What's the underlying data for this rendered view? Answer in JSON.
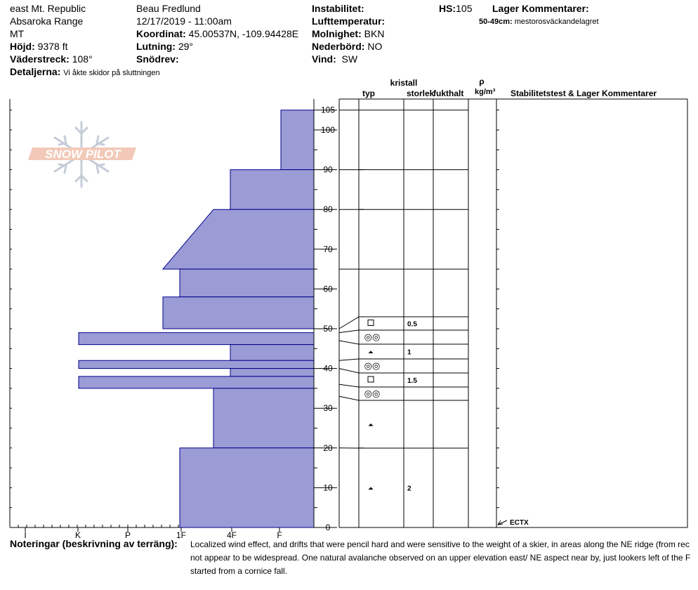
{
  "header": {
    "location_line1": "east Mt. Republic",
    "location_line2": "Absaroka Range",
    "location_line3": "MT",
    "hojd_label": "Höjd:",
    "hojd_value": "9378 ft",
    "vaderstreck_label": "Väderstreck:",
    "vaderstreck_value": "108°",
    "detaljerna_label": "Detaljerna:",
    "detaljerna_value": "Vi åkte skidor på sluttningen",
    "observer": "Beau  Fredlund",
    "datetime": "12/17/2019 - 11:00am",
    "koordinat_label": "Koordinat:",
    "koordinat_value": "45.00537N, -109.94428E",
    "lutning_label": "Lutning:",
    "lutning_value": "29°",
    "snodrev_label": "Snödrev:",
    "snodrev_value": "",
    "instabilitet_label": "Instabilitet:",
    "instabilitet_value": "",
    "lufttemperatur_label": "Lufttemperatur:",
    "lufttemperatur_value": "",
    "molnighet_label": "Molnighet:",
    "molnighet_value": "BKN",
    "nederbord_label": "Nederbörd:",
    "nederbord_value": "NO",
    "vind_label": "Vind:",
    "vind_value": "SW",
    "hs_label": "HS:",
    "hs_value": "105",
    "lager_kommentarer_label": "Lager Kommentarer:",
    "lager_kommentar_depth": "50-49cm:",
    "lager_kommentar_text": "mestorosväckandelagret"
  },
  "logo_text": "SNOW PILOT",
  "columns": {
    "kristall": "kristall",
    "typ": "typ",
    "storlek": "storlek",
    "fukthalt": "fukthalt",
    "rho": "ρ",
    "rho_unit": "kg/m³",
    "stabilitet": "Stabilitetstest & Lager Kommentarer"
  },
  "hardness_labels": [
    "I",
    "K",
    "P",
    "1F",
    "4F",
    "F"
  ],
  "depth_ticks": [
    0,
    10,
    20,
    30,
    40,
    50,
    60,
    70,
    80,
    90,
    100,
    105
  ],
  "stability_test": "ECTX",
  "notes_label": "Noteringar (beskrivning av terräng):",
  "notes_lines": [
    "Localized wind effect, and drifts that were pencil hard and were sensitive to the weight of a skier, in areas along the NE ridge (from rec",
    "not appear to be widespread.  One natural avalanche observed on an upper elevation east/ NE aspect near by, just lookers left of the F",
    "started from a cornice fall."
  ],
  "chart_data": {
    "type": "bar",
    "xlabel": "",
    "ylabel": "",
    "ylim": [
      0,
      105
    ],
    "hardness_scale": [
      "F",
      "4F",
      "1F",
      "P",
      "K",
      "I"
    ],
    "layers": [
      {
        "top": 105,
        "bottom": 90,
        "hardness_top": "F",
        "hardness_bottom": "F"
      },
      {
        "top": 90,
        "bottom": 80,
        "hardness_top": "4F",
        "hardness_bottom": "4F"
      },
      {
        "top": 80,
        "bottom": 65,
        "hardness_top": "4F-",
        "hardness_bottom": "1F+"
      },
      {
        "top": 65,
        "bottom": 58,
        "hardness_top": "1F",
        "hardness_bottom": "1F"
      },
      {
        "top": 58,
        "bottom": 50,
        "hardness_top": "1F+",
        "hardness_bottom": "1F+"
      },
      {
        "top": 49,
        "bottom": 46,
        "hardness_top": "K",
        "hardness_bottom": "K"
      },
      {
        "top": 46,
        "bottom": 42,
        "hardness_top": "4F",
        "hardness_bottom": "4F"
      },
      {
        "top": 42,
        "bottom": 40,
        "hardness_top": "K",
        "hardness_bottom": "K"
      },
      {
        "top": 40,
        "bottom": 38,
        "hardness_top": "4F",
        "hardness_bottom": "4F"
      },
      {
        "top": 38,
        "bottom": 35,
        "hardness_top": "K",
        "hardness_bottom": "K"
      },
      {
        "top": 35,
        "bottom": 20,
        "hardness_top": "4F-",
        "hardness_bottom": "4F-"
      },
      {
        "top": 20,
        "bottom": 0,
        "hardness_top": "1F",
        "hardness_bottom": "1F"
      }
    ],
    "crystal_rows": [
      {
        "top": 53,
        "bottom": 50,
        "type": "square",
        "size": "0.5",
        "depth_top": 50,
        "depth_bottom": 49
      },
      {
        "top": 50,
        "bottom": 46.5,
        "type": "rounds",
        "size": "",
        "depth_top": 49,
        "depth_bottom": 47
      },
      {
        "top": 46.5,
        "bottom": 43,
        "type": "faceted",
        "size": "1",
        "depth_top": 47,
        "depth_bottom": 42
      },
      {
        "top": 43,
        "bottom": 39.5,
        "type": "rounds",
        "size": "",
        "depth_top": 42,
        "depth_bottom": 40
      },
      {
        "top": 39.5,
        "bottom": 35.5,
        "type": "square",
        "size": "1.5",
        "depth_top": 40,
        "depth_bottom": 36
      },
      {
        "top": 35.5,
        "bottom": 32,
        "type": "rounds",
        "size": "",
        "depth_top": 36,
        "depth_bottom": 33
      },
      {
        "top": 32,
        "bottom": 20,
        "type": "faceted",
        "size": "",
        "depth_top": 33,
        "depth_bottom": 20
      },
      {
        "top": 20,
        "bottom": 0,
        "type": "faceted",
        "size": "2",
        "depth_top": 20,
        "depth_bottom": 0
      }
    ],
    "simple_boundaries": [
      105,
      90,
      80,
      65
    ],
    "colors": {
      "fill": "#9b9bd6",
      "stroke": "#00008b"
    }
  }
}
